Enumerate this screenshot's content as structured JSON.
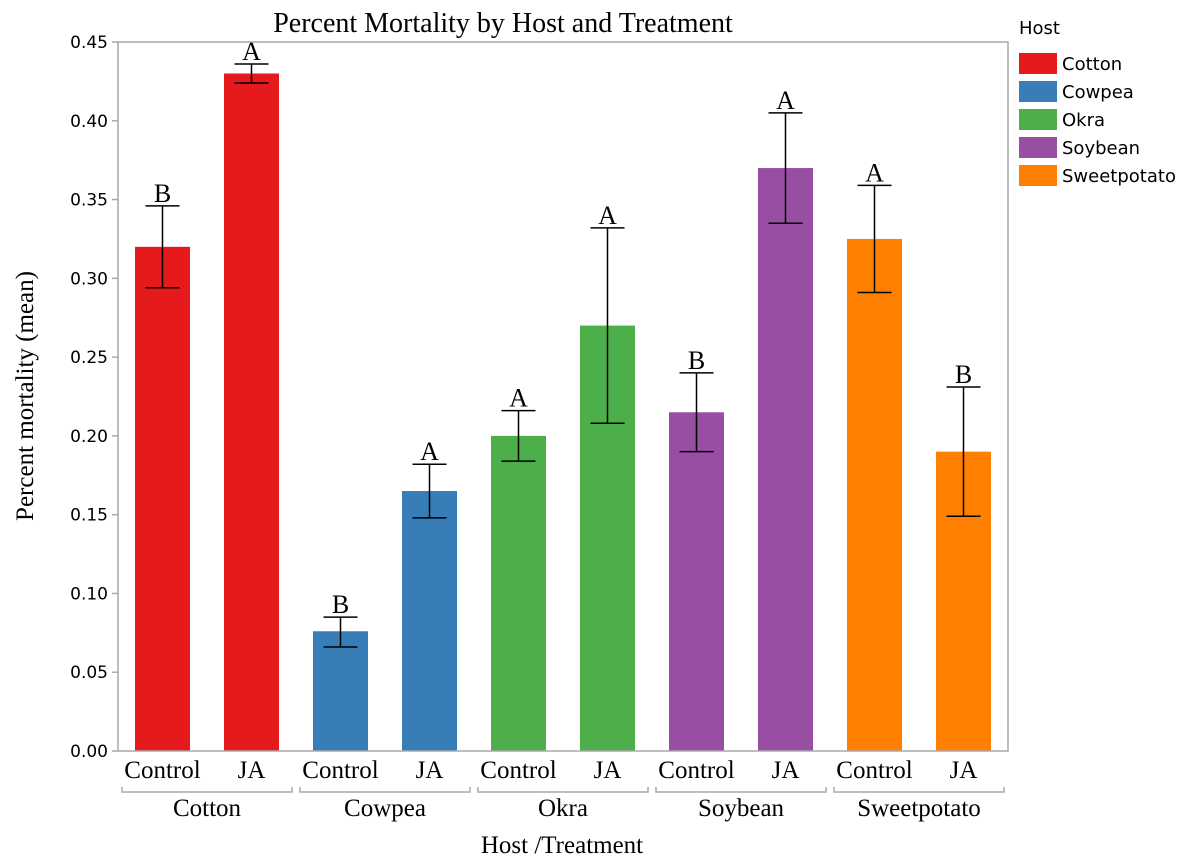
{
  "chart_data": {
    "type": "bar",
    "title": "Percent Mortality by Host and Treatment",
    "xlabel": "Host /Treatment",
    "ylabel": "Percent mortality (mean)",
    "ylim": [
      0,
      0.45
    ],
    "yticks": [
      "0.00",
      "0.05",
      "0.10",
      "0.15",
      "0.20",
      "0.25",
      "0.30",
      "0.35",
      "0.40",
      "0.45"
    ],
    "grid": false,
    "legend": {
      "title": "Host",
      "placement": "right",
      "entries": [
        {
          "label": "Cotton",
          "color": "#e41a1c"
        },
        {
          "label": "Cowpea",
          "color": "#377eb8"
        },
        {
          "label": "Okra",
          "color": "#4daf4a"
        },
        {
          "label": "Soybean",
          "color": "#984ea3"
        },
        {
          "label": "Sweetpotato",
          "color": "#ff7f00"
        }
      ]
    },
    "groups": [
      {
        "host": "Cotton",
        "color": "#e41a1c",
        "bars": [
          {
            "treatment": "Control",
            "value": 0.32,
            "err_low": 0.294,
            "err_high": 0.346,
            "letter": "B"
          },
          {
            "treatment": "JA",
            "value": 0.43,
            "err_low": 0.424,
            "err_high": 0.436,
            "letter": "A"
          }
        ]
      },
      {
        "host": "Cowpea",
        "color": "#377eb8",
        "bars": [
          {
            "treatment": "Control",
            "value": 0.076,
            "err_low": 0.066,
            "err_high": 0.085,
            "letter": "B"
          },
          {
            "treatment": "JA",
            "value": 0.165,
            "err_low": 0.148,
            "err_high": 0.182,
            "letter": "A"
          }
        ]
      },
      {
        "host": "Okra",
        "color": "#4daf4a",
        "bars": [
          {
            "treatment": "Control",
            "value": 0.2,
            "err_low": 0.184,
            "err_high": 0.216,
            "letter": "A"
          },
          {
            "treatment": "JA",
            "value": 0.27,
            "err_low": 0.208,
            "err_high": 0.332,
            "letter": "A"
          }
        ]
      },
      {
        "host": "Soybean",
        "color": "#984ea3",
        "bars": [
          {
            "treatment": "Control",
            "value": 0.215,
            "err_low": 0.19,
            "err_high": 0.24,
            "letter": "B"
          },
          {
            "treatment": "JA",
            "value": 0.37,
            "err_low": 0.335,
            "err_high": 0.405,
            "letter": "A"
          }
        ]
      },
      {
        "host": "Sweetpotato",
        "color": "#ff7f00",
        "bars": [
          {
            "treatment": "Control",
            "value": 0.325,
            "err_low": 0.291,
            "err_high": 0.359,
            "letter": "A"
          },
          {
            "treatment": "JA",
            "value": 0.19,
            "err_low": 0.149,
            "err_high": 0.231,
            "letter": "B"
          }
        ]
      }
    ]
  }
}
